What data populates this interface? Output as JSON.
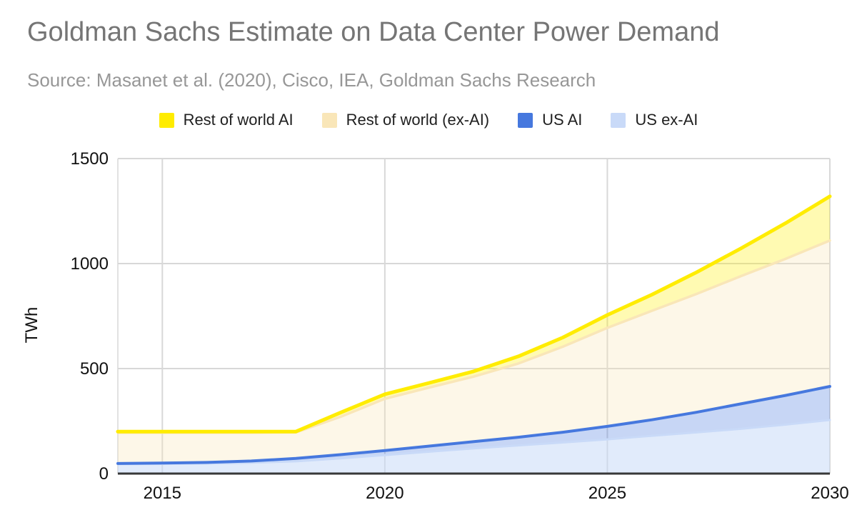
{
  "header": {
    "title": "Goldman Sachs Estimate on Data Center Power Demand",
    "subtitle": "Source: Masanet et al. (2020), Cisco, IEA, Goldman Sachs Research"
  },
  "colors": {
    "title_text": "#757575",
    "subtitle_text": "#979797",
    "grid": "#d8d8d8",
    "axis_line": "#383838",
    "tick_text": "#111111",
    "row_ai": "#ffec00",
    "row_ex_ai": "#f9e6b8",
    "us_ai": "#4678de",
    "us_ex_ai": "#c9daf8"
  },
  "chart_data": {
    "type": "area",
    "stacked": true,
    "title": "Goldman Sachs Estimate on Data Center Power Demand",
    "xlabel": "",
    "ylabel": "TWh",
    "xlim": [
      2014,
      2030
    ],
    "ylim": [
      0,
      1500
    ],
    "grid": true,
    "legend_position": "top",
    "xticks": [
      2015,
      2020,
      2025,
      2030
    ],
    "yticks": [
      0,
      500,
      1000,
      1500
    ],
    "x": [
      2014,
      2015,
      2016,
      2017,
      2018,
      2019,
      2020,
      2021,
      2022,
      2023,
      2024,
      2025,
      2026,
      2027,
      2028,
      2029,
      2030
    ],
    "series": [
      {
        "name": "US ex-AI",
        "color": "#c9daf8",
        "fill": "rgba(201,218,248,0.55)",
        "values": [
          45,
          46,
          48,
          52,
          58,
          72,
          88,
          104,
          120,
          134,
          148,
          163,
          180,
          196,
          213,
          233,
          255
        ],
        "cumulative": [
          45,
          46,
          48,
          52,
          58,
          72,
          88,
          104,
          120,
          134,
          148,
          163,
          180,
          196,
          213,
          233,
          255
        ]
      },
      {
        "name": "US AI",
        "color": "#4678de",
        "fill": "rgba(70,120,222,0.30)",
        "values": [
          3,
          4,
          5,
          8,
          14,
          18,
          22,
          27,
          32,
          39,
          49,
          62,
          76,
          96,
          119,
          139,
          160
        ],
        "cumulative": [
          48,
          50,
          53,
          60,
          72,
          90,
          110,
          131,
          152,
          173,
          197,
          225,
          256,
          292,
          332,
          372,
          415
        ]
      },
      {
        "name": "Rest of world (ex-AI)",
        "color": "#f9e6b8",
        "fill": "rgba(249,230,184,0.32)",
        "values": [
          147,
          145,
          142,
          135,
          124,
          180,
          246,
          279,
          310,
          351,
          407,
          469,
          519,
          563,
          608,
          650,
          695
        ],
        "cumulative": [
          195,
          195,
          195,
          195,
          196,
          270,
          356,
          410,
          462,
          524,
          604,
          694,
          775,
          855,
          940,
          1022,
          1110
        ]
      },
      {
        "name": "Rest of world AI",
        "color": "#ffec00",
        "fill": "rgba(255,240,0,0.30)",
        "values": [
          5,
          5,
          5,
          5,
          4,
          20,
          22,
          22,
          25,
          34,
          44,
          61,
          77,
          103,
          132,
          170,
          210
        ],
        "cumulative": [
          200,
          200,
          200,
          200,
          200,
          290,
          378,
          432,
          487,
          558,
          648,
          755,
          852,
          958,
          1072,
          1192,
          1320
        ]
      }
    ],
    "legend": [
      {
        "label": "Rest of world AI",
        "color": "#ffec00"
      },
      {
        "label": "Rest of world (ex-AI)",
        "color": "#f9e6b8"
      },
      {
        "label": "US AI",
        "color": "#4678de"
      },
      {
        "label": "US ex-AI",
        "color": "#c9daf8"
      }
    ]
  }
}
